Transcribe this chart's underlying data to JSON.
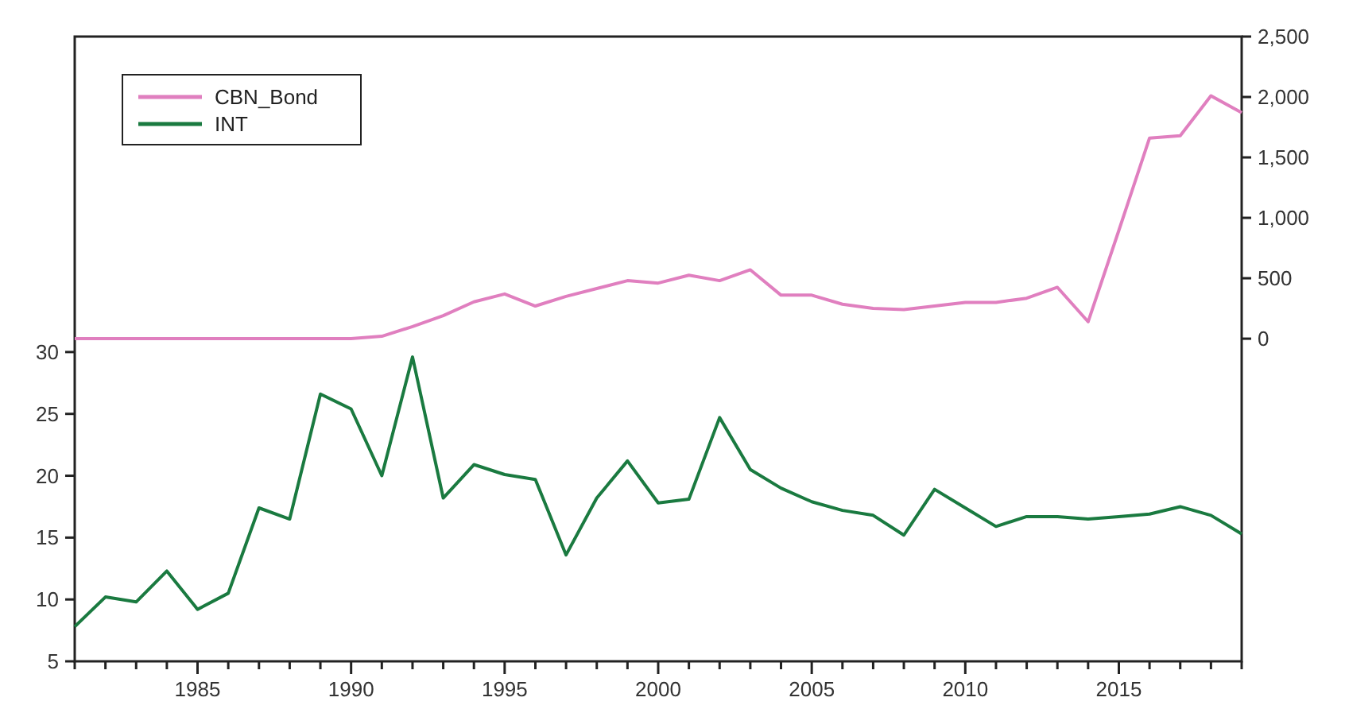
{
  "chart_data": {
    "type": "line",
    "x": [
      1981,
      1982,
      1983,
      1984,
      1985,
      1986,
      1987,
      1988,
      1989,
      1990,
      1991,
      1992,
      1993,
      1994,
      1995,
      1996,
      1997,
      1998,
      1999,
      2000,
      2001,
      2002,
      2003,
      2004,
      2005,
      2006,
      2007,
      2008,
      2009,
      2010,
      2011,
      2012,
      2013,
      2014,
      2015,
      2016,
      2017,
      2018,
      2019
    ],
    "series": [
      {
        "name": "CBN_Bond",
        "color": "#e07fbf",
        "axis": "y2",
        "values": [
          0,
          0,
          0,
          0,
          0,
          0,
          0,
          0,
          0,
          0,
          20,
          100,
          190,
          305,
          370,
          270,
          350,
          415,
          480,
          460,
          525,
          480,
          570,
          360,
          360,
          285,
          250,
          240,
          270,
          300,
          300,
          335,
          425,
          140,
          895,
          1660,
          1680,
          2010,
          1870
        ]
      },
      {
        "name": "INT",
        "color": "#1a7a40",
        "values": [
          7.8,
          10.2,
          9.8,
          12.3,
          9.2,
          10.5,
          17.4,
          16.5,
          26.6,
          25.4,
          20,
          29.6,
          18.2,
          20.9,
          20.1,
          19.7,
          13.6,
          18.2,
          21.2,
          17.8,
          18.1,
          24.7,
          20.5,
          19,
          17.9,
          17.2,
          16.8,
          15.2,
          18.9,
          17.4,
          15.9,
          16.7,
          16.7,
          16.5,
          16.7,
          16.9,
          17.5,
          16.8,
          15.3
        ]
      }
    ],
    "xlim": [
      1981,
      2019
    ],
    "xticks": [
      {
        "value": 1981,
        "label": null
      },
      {
        "value": 1982,
        "label": null
      },
      {
        "value": 1983,
        "label": null
      },
      {
        "value": 1984,
        "label": null
      },
      1985,
      {
        "value": 1986,
        "label": null
      },
      {
        "value": 1987,
        "label": null
      },
      {
        "value": 1988,
        "label": null
      },
      {
        "value": 1989,
        "label": null
      },
      1990,
      {
        "value": 1991,
        "label": null
      },
      {
        "value": 1992,
        "label": null
      },
      {
        "value": 1993,
        "label": null
      },
      {
        "value": 1994,
        "label": null
      },
      1995,
      {
        "value": 1996,
        "label": null
      },
      {
        "value": 1997,
        "label": null
      },
      {
        "value": 1998,
        "label": null
      },
      {
        "value": 1999,
        "label": null
      },
      2000,
      {
        "value": 2001,
        "label": null
      },
      {
        "value": 2002,
        "label": null
      },
      {
        "value": 2003,
        "label": null
      },
      {
        "value": 2004,
        "label": null
      },
      2005,
      {
        "value": 2006,
        "label": null
      },
      {
        "value": 2007,
        "label": null
      },
      {
        "value": 2008,
        "label": null
      },
      {
        "value": 2009,
        "label": null
      },
      2010,
      {
        "value": 2011,
        "label": null
      },
      {
        "value": 2012,
        "label": null
      },
      {
        "value": 2013,
        "label": null
      },
      {
        "value": 2014,
        "label": null
      },
      2015,
      {
        "value": 2016,
        "label": null
      },
      {
        "value": 2017,
        "label": null
      },
      {
        "value": 2018,
        "label": null
      },
      {
        "value": 2019,
        "label": null
      }
    ],
    "ylim": [
      5,
      55.5
    ],
    "yticks": [
      5,
      10,
      15,
      20,
      25,
      30
    ],
    "y2lim": [
      -2670,
      2500
    ],
    "y2ticks": [
      0,
      {
        "value": 500,
        "label": "500"
      },
      {
        "value": 1000,
        "label": "1,000"
      },
      {
        "value": 1500,
        "label": "1,500"
      },
      {
        "value": 2000,
        "label": "2,000"
      },
      {
        "value": 2500,
        "label": "2,500"
      }
    ],
    "legend": "top left",
    "grid": false,
    "line_style": "solid"
  }
}
